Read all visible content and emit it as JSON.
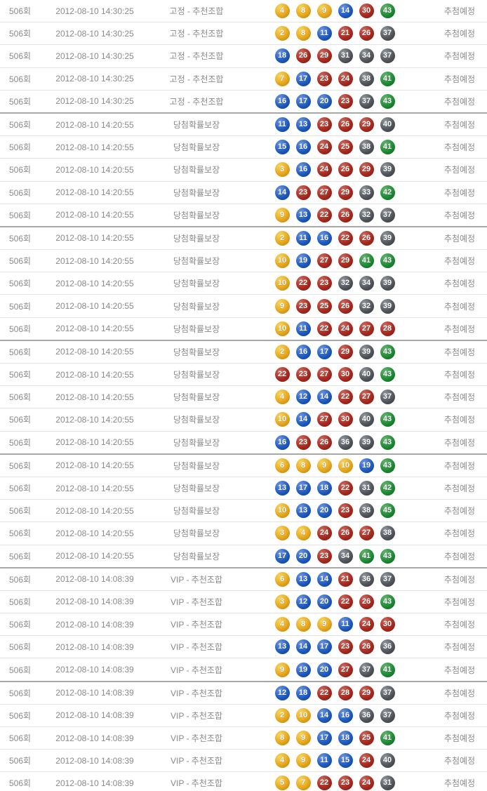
{
  "table": {
    "status_label": "추첨예정",
    "columns": [
      "round",
      "datetime",
      "category",
      "numbers",
      "status"
    ],
    "rows": [
      {
        "round": "506회",
        "datetime": "2012-08-10 14:30:25",
        "category": "고정 - 추천조합",
        "numbers": [
          4,
          8,
          9,
          14,
          30,
          43
        ],
        "status": "추첨예정"
      },
      {
        "round": "506회",
        "datetime": "2012-08-10 14:30:25",
        "category": "고정 - 추천조합",
        "numbers": [
          2,
          8,
          11,
          21,
          26,
          37
        ],
        "status": "추첨예정"
      },
      {
        "round": "506회",
        "datetime": "2012-08-10 14:30:25",
        "category": "고정 - 추천조합",
        "numbers": [
          18,
          26,
          29,
          31,
          34,
          37
        ],
        "status": "추첨예정"
      },
      {
        "round": "506회",
        "datetime": "2012-08-10 14:30:25",
        "category": "고정 - 추천조합",
        "numbers": [
          7,
          17,
          23,
          24,
          38,
          41
        ],
        "status": "추첨예정"
      },
      {
        "round": "506회",
        "datetime": "2012-08-10 14:30:25",
        "category": "고정 - 추천조합",
        "numbers": [
          16,
          17,
          20,
          23,
          37,
          43
        ],
        "status": "추첨예정"
      },
      {
        "round": "506회",
        "datetime": "2012-08-10 14:20:55",
        "category": "당첨확률보장",
        "numbers": [
          11,
          13,
          23,
          26,
          29,
          40
        ],
        "status": "추첨예정"
      },
      {
        "round": "506회",
        "datetime": "2012-08-10 14:20:55",
        "category": "당첨확률보장",
        "numbers": [
          15,
          16,
          24,
          25,
          38,
          41
        ],
        "status": "추첨예정"
      },
      {
        "round": "506회",
        "datetime": "2012-08-10 14:20:55",
        "category": "당첨확률보장",
        "numbers": [
          3,
          16,
          24,
          26,
          29,
          39
        ],
        "status": "추첨예정"
      },
      {
        "round": "506회",
        "datetime": "2012-08-10 14:20:55",
        "category": "당첨확률보장",
        "numbers": [
          14,
          23,
          27,
          29,
          33,
          42
        ],
        "status": "추첨예정"
      },
      {
        "round": "506회",
        "datetime": "2012-08-10 14:20:55",
        "category": "당첨확률보장",
        "numbers": [
          9,
          13,
          22,
          26,
          32,
          37
        ],
        "status": "추첨예정"
      },
      {
        "round": "506회",
        "datetime": "2012-08-10 14:20:55",
        "category": "당첨확률보장",
        "numbers": [
          2,
          11,
          16,
          22,
          26,
          39
        ],
        "status": "추첨예정"
      },
      {
        "round": "506회",
        "datetime": "2012-08-10 14:20:55",
        "category": "당첨확률보장",
        "numbers": [
          10,
          19,
          27,
          29,
          41,
          43
        ],
        "status": "추첨예정"
      },
      {
        "round": "506회",
        "datetime": "2012-08-10 14:20:55",
        "category": "당첨확률보장",
        "numbers": [
          10,
          22,
          23,
          32,
          34,
          39
        ],
        "status": "추첨예정"
      },
      {
        "round": "506회",
        "datetime": "2012-08-10 14:20:55",
        "category": "당첨확률보장",
        "numbers": [
          9,
          23,
          25,
          26,
          32,
          39
        ],
        "status": "추첨예정"
      },
      {
        "round": "506회",
        "datetime": "2012-08-10 14:20:55",
        "category": "당첨확률보장",
        "numbers": [
          10,
          11,
          22,
          24,
          27,
          28
        ],
        "status": "추첨예정"
      },
      {
        "round": "506회",
        "datetime": "2012-08-10 14:20:55",
        "category": "당첨확률보장",
        "numbers": [
          2,
          16,
          17,
          29,
          39,
          43
        ],
        "status": "추첨예정"
      },
      {
        "round": "506회",
        "datetime": "2012-08-10 14:20:55",
        "category": "당첨확률보장",
        "numbers": [
          22,
          23,
          27,
          30,
          40,
          43
        ],
        "status": "추첨예정"
      },
      {
        "round": "506회",
        "datetime": "2012-08-10 14:20:55",
        "category": "당첨확률보장",
        "numbers": [
          4,
          12,
          14,
          22,
          27,
          37
        ],
        "status": "추첨예정"
      },
      {
        "round": "506회",
        "datetime": "2012-08-10 14:20:55",
        "category": "당첨확률보장",
        "numbers": [
          10,
          14,
          27,
          30,
          40,
          43
        ],
        "status": "추첨예정"
      },
      {
        "round": "506회",
        "datetime": "2012-08-10 14:20:55",
        "category": "당첨확률보장",
        "numbers": [
          16,
          23,
          26,
          36,
          39,
          43
        ],
        "status": "추첨예정"
      },
      {
        "round": "506회",
        "datetime": "2012-08-10 14:20:55",
        "category": "당첨확률보장",
        "numbers": [
          6,
          8,
          9,
          10,
          19,
          43
        ],
        "status": "추첨예정"
      },
      {
        "round": "506회",
        "datetime": "2012-08-10 14:20:55",
        "category": "당첨확률보장",
        "numbers": [
          13,
          17,
          18,
          22,
          31,
          42
        ],
        "status": "추첨예정"
      },
      {
        "round": "506회",
        "datetime": "2012-08-10 14:20:55",
        "category": "당첨확률보장",
        "numbers": [
          10,
          13,
          20,
          23,
          38,
          45
        ],
        "status": "추첨예정"
      },
      {
        "round": "506회",
        "datetime": "2012-08-10 14:20:55",
        "category": "당첨확률보장",
        "numbers": [
          3,
          4,
          24,
          26,
          27,
          38
        ],
        "status": "추첨예정"
      },
      {
        "round": "506회",
        "datetime": "2012-08-10 14:20:55",
        "category": "당첨확률보장",
        "numbers": [
          17,
          20,
          23,
          34,
          41,
          43
        ],
        "status": "추첨예정"
      },
      {
        "round": "506회",
        "datetime": "2012-08-10 14:08:39",
        "category": "VIP - 추천조합",
        "numbers": [
          6,
          13,
          14,
          21,
          36,
          37
        ],
        "status": "추첨예정"
      },
      {
        "round": "506회",
        "datetime": "2012-08-10 14:08:39",
        "category": "VIP - 추천조합",
        "numbers": [
          3,
          12,
          20,
          22,
          26,
          43
        ],
        "status": "추첨예정"
      },
      {
        "round": "506회",
        "datetime": "2012-08-10 14:08:39",
        "category": "VIP - 추천조합",
        "numbers": [
          4,
          8,
          9,
          11,
          24,
          30
        ],
        "status": "추첨예정"
      },
      {
        "round": "506회",
        "datetime": "2012-08-10 14:08:39",
        "category": "VIP - 추천조합",
        "numbers": [
          13,
          14,
          17,
          23,
          26,
          36
        ],
        "status": "추첨예정"
      },
      {
        "round": "506회",
        "datetime": "2012-08-10 14:08:39",
        "category": "VIP - 추천조합",
        "numbers": [
          9,
          19,
          20,
          27,
          37,
          41
        ],
        "status": "추첨예정"
      },
      {
        "round": "506회",
        "datetime": "2012-08-10 14:08:39",
        "category": "VIP - 추천조합",
        "numbers": [
          12,
          18,
          22,
          28,
          29,
          37
        ],
        "status": "추첨예정"
      },
      {
        "round": "506회",
        "datetime": "2012-08-10 14:08:39",
        "category": "VIP - 추천조합",
        "numbers": [
          2,
          10,
          14,
          16,
          36,
          37
        ],
        "status": "추첨예정"
      },
      {
        "round": "506회",
        "datetime": "2012-08-10 14:08:39",
        "category": "VIP - 추천조합",
        "numbers": [
          8,
          9,
          17,
          18,
          25,
          41
        ],
        "status": "추첨예정"
      },
      {
        "round": "506회",
        "datetime": "2012-08-10 14:08:39",
        "category": "VIP - 추천조합",
        "numbers": [
          4,
          9,
          11,
          15,
          24,
          40
        ],
        "status": "추첨예정"
      },
      {
        "round": "506회",
        "datetime": "2012-08-10 14:08:39",
        "category": "VIP - 추천조합",
        "numbers": [
          5,
          7,
          22,
          23,
          24,
          31
        ],
        "status": "추첨예정"
      }
    ]
  },
  "ball_colors": {
    "range_1_10": {
      "name": "yellow",
      "light": "#f9d75e",
      "main": "#e6a71f",
      "dark": "#b97f06"
    },
    "range_11_20": {
      "name": "blue",
      "light": "#6e97e0",
      "main": "#1f5bbf",
      "dark": "#0a3a8e"
    },
    "range_21_30": {
      "name": "red",
      "light": "#cf6a5f",
      "main": "#a72a1f",
      "dark": "#7c1710"
    },
    "range_31_40": {
      "name": "gray",
      "light": "#9298a0",
      "main": "#53575d",
      "dark": "#303439"
    },
    "range_41_45": {
      "name": "green",
      "light": "#67b571",
      "main": "#1f8c35",
      "dark": "#0d5a1f"
    }
  },
  "colors": {
    "text": "#8a8a8a",
    "row_border": "#e4e4e4",
    "group_border": "#a8a8a8",
    "background": "#ffffff"
  }
}
